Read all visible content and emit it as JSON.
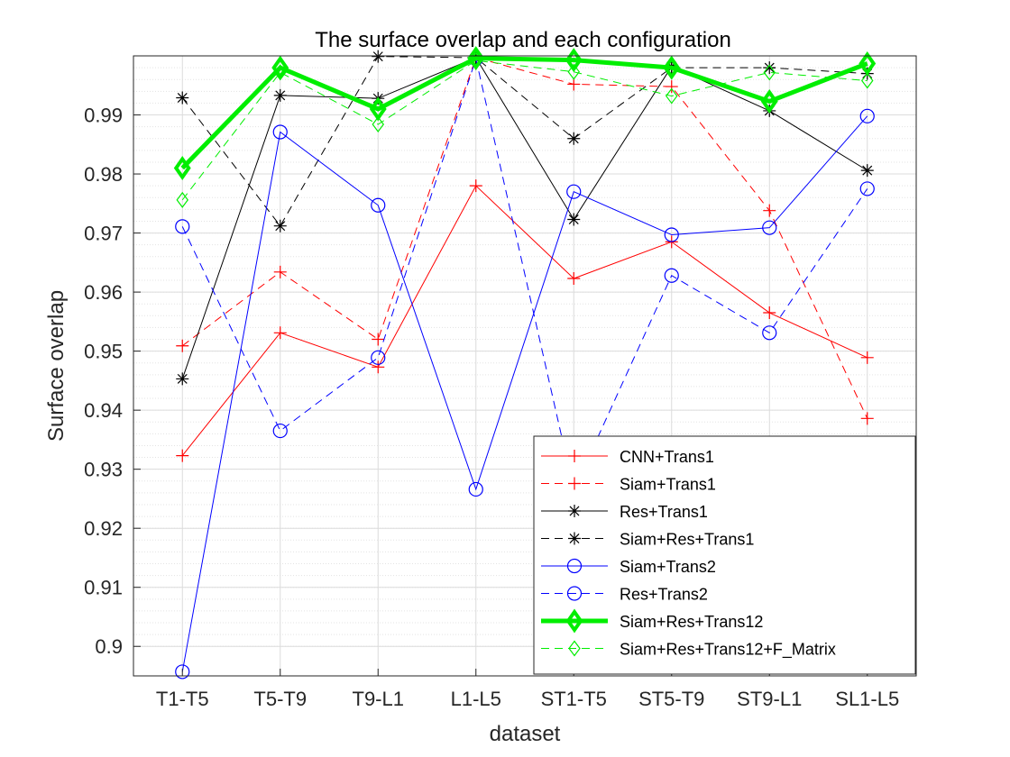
{
  "chart_data": {
    "type": "line",
    "title": "The surface overlap and each configuration",
    "xlabel": "dataset",
    "ylabel": "Surface overlap",
    "categories": [
      "T1-T5",
      "T5-T9",
      "T9-L1",
      "L1-L5",
      "ST1-T5",
      "ST5-T9",
      "ST9-L1",
      "SL1-L5"
    ],
    "ylim": [
      0.895,
      1.0
    ],
    "yticks": [
      "0.9",
      "0.91",
      "0.92",
      "0.93",
      "0.94",
      "0.95",
      "0.96",
      "0.97",
      "0.98",
      "0.99"
    ],
    "grid": true,
    "legend_position": "bottom-right",
    "series": [
      {
        "name": "CNN+Trans1",
        "color": "#ff0000",
        "dash": "solid",
        "marker": "plus",
        "width": 1,
        "values": [
          0.9323,
          0.9531,
          0.9473,
          0.978,
          0.9623,
          0.9685,
          0.9565,
          0.9489
        ]
      },
      {
        "name": "Siam+Trans1",
        "color": "#ff0000",
        "dash": "dashed",
        "marker": "plus",
        "width": 1,
        "values": [
          0.9509,
          0.9634,
          0.952,
          0.9997,
          0.9952,
          0.9948,
          0.9738,
          0.9386
        ]
      },
      {
        "name": "Res+Trans1",
        "color": "#000000",
        "dash": "solid",
        "marker": "star",
        "width": 1,
        "values": [
          0.9453,
          0.9933,
          0.9928,
          0.9997,
          0.9723,
          0.9982,
          0.9907,
          0.9806
        ]
      },
      {
        "name": "Siam+Res+Trans1",
        "color": "#000000",
        "dash": "dashed",
        "marker": "star",
        "width": 1,
        "values": [
          0.9929,
          0.9712,
          0.9999,
          0.9997,
          0.986,
          0.998,
          0.998,
          0.997
        ]
      },
      {
        "name": "Siam+Trans2",
        "color": "#0000ff",
        "dash": "solid",
        "marker": "circle",
        "width": 1,
        "values": [
          0.8957,
          0.9871,
          0.9747,
          0.9266,
          0.977,
          0.9697,
          0.9709,
          0.9898
        ]
      },
      {
        "name": "Res+Trans2",
        "color": "#0000ff",
        "dash": "dashed",
        "marker": "circle",
        "width": 1,
        "values": [
          0.9711,
          0.9365,
          0.9489,
          0.9995,
          0.9265,
          0.9628,
          0.9531,
          0.9775
        ]
      },
      {
        "name": "Siam+Res+Trans12",
        "color": "#00ee00",
        "dash": "solid",
        "marker": "diamond",
        "width": 5,
        "values": [
          0.981,
          0.998,
          0.991,
          0.9996,
          0.9993,
          0.998,
          0.9923,
          0.9987
        ]
      },
      {
        "name": "Siam+Res+Trans12+F_Matrix",
        "color": "#00ee00",
        "dash": "dashed",
        "marker": "diamond",
        "width": 1,
        "values": [
          0.9756,
          0.9972,
          0.9884,
          0.9992,
          0.9973,
          0.9932,
          0.9972,
          0.9958
        ]
      }
    ]
  }
}
